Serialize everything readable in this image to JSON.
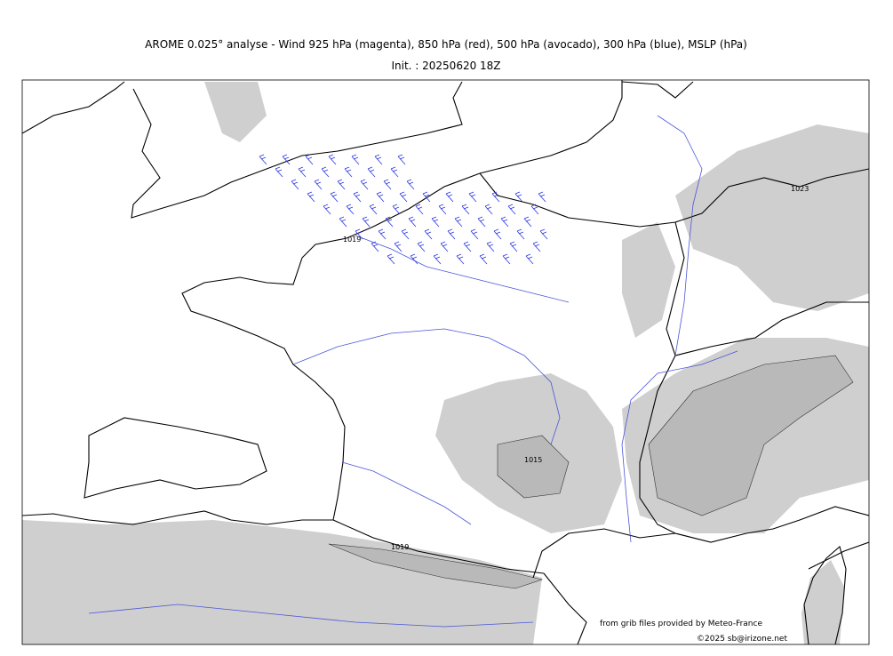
{
  "header": {
    "title": "AROME 0.025° analyse - Wind 925 hPa (magenta), 850 hPa (red), 500 hPa (avocado), 300 hPa (blue), MSLP (hPa)",
    "subtitle": "Init. : 20250620 18Z"
  },
  "isobar_labels": [
    "1019",
    "1023",
    "1015",
    "1019"
  ],
  "credits": [
    "from grib files provided by Meteo-France",
    "©2025 sb@irizone.net"
  ]
}
